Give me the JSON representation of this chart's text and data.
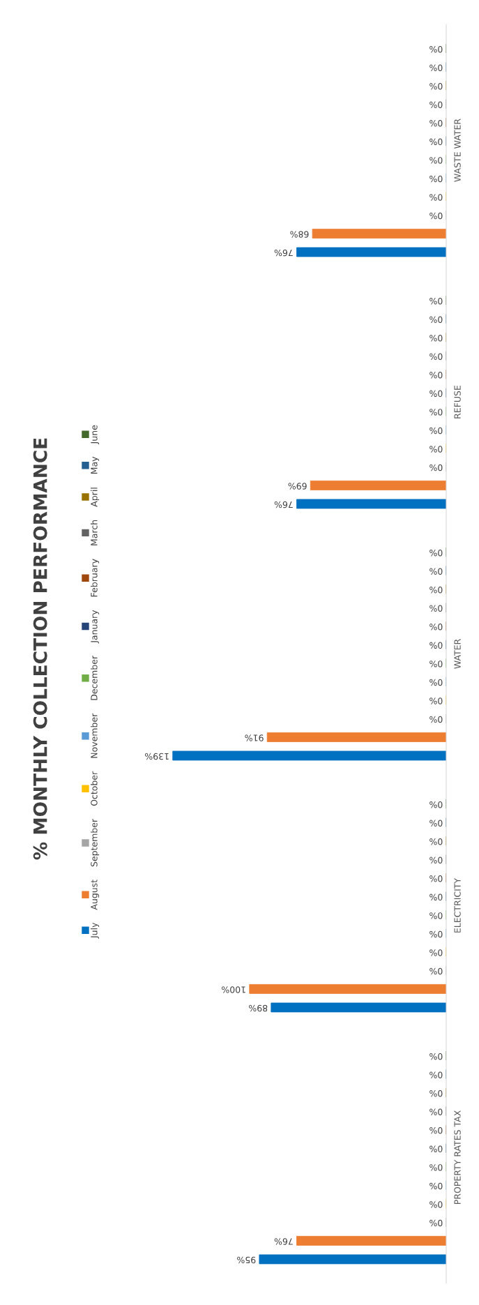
{
  "chart_data": {
    "type": "bar",
    "orientation": "horizontal",
    "title": "% MONTHLY COLLECTION PERFORMANCE",
    "categories": [
      "WASTE WATER",
      "REFUSE",
      "WATER",
      "ELECTRICITY",
      "PROPERTY RATES TAX"
    ],
    "series": [
      {
        "name": "July",
        "color": "#0070c0",
        "values": [
          76,
          76,
          139,
          89,
          95
        ],
        "value_labels": [
          "76%",
          "76%",
          "139%",
          "89%",
          "95%"
        ]
      },
      {
        "name": "August",
        "color": "#ed7d31",
        "values": [
          68,
          69,
          91,
          100,
          76
        ],
        "value_labels": [
          "68%",
          "69%",
          "91%",
          "100%",
          "76%"
        ]
      },
      {
        "name": "September",
        "color": "#a5a5a5",
        "values": [
          0,
          0,
          0,
          0,
          0
        ],
        "value_labels": [
          "0%",
          "0%",
          "0%",
          "0%",
          "0%"
        ]
      },
      {
        "name": "October",
        "color": "#ffc000",
        "values": [
          0,
          0,
          0,
          0,
          0
        ],
        "value_labels": [
          "0%",
          "0%",
          "0%",
          "0%",
          "0%"
        ]
      },
      {
        "name": "November",
        "color": "#5b9bd5",
        "values": [
          0,
          0,
          0,
          0,
          0
        ],
        "value_labels": [
          "0%",
          "0%",
          "0%",
          "0%",
          "0%"
        ]
      },
      {
        "name": "December",
        "color": "#70ad47",
        "values": [
          0,
          0,
          0,
          0,
          0
        ],
        "value_labels": [
          "0%",
          "0%",
          "0%",
          "0%",
          "0%"
        ]
      },
      {
        "name": "January",
        "color": "#264478",
        "values": [
          0,
          0,
          0,
          0,
          0
        ],
        "value_labels": [
          "0%",
          "0%",
          "0%",
          "0%",
          "0%"
        ]
      },
      {
        "name": "February",
        "color": "#9e480e",
        "values": [
          0,
          0,
          0,
          0,
          0
        ],
        "value_labels": [
          "0%",
          "0%",
          "0%",
          "0%",
          "0%"
        ]
      },
      {
        "name": "March",
        "color": "#636363",
        "values": [
          0,
          0,
          0,
          0,
          0
        ],
        "value_labels": [
          "0%",
          "0%",
          "0%",
          "0%",
          "0%"
        ]
      },
      {
        "name": "April",
        "color": "#997300",
        "values": [
          0,
          0,
          0,
          0,
          0
        ],
        "value_labels": [
          "0%",
          "0%",
          "0%",
          "0%",
          "0%"
        ]
      },
      {
        "name": "May",
        "color": "#255e91",
        "values": [
          0,
          0,
          0,
          0,
          0
        ],
        "value_labels": [
          "0%",
          "0%",
          "0%",
          "0%",
          "0%"
        ]
      },
      {
        "name": "June",
        "color": "#43682b",
        "values": [
          0,
          0,
          0,
          0,
          0
        ],
        "value_labels": [
          "0%",
          "0%",
          "0%",
          "0%",
          "0%"
        ]
      }
    ],
    "legend": "left"
  }
}
